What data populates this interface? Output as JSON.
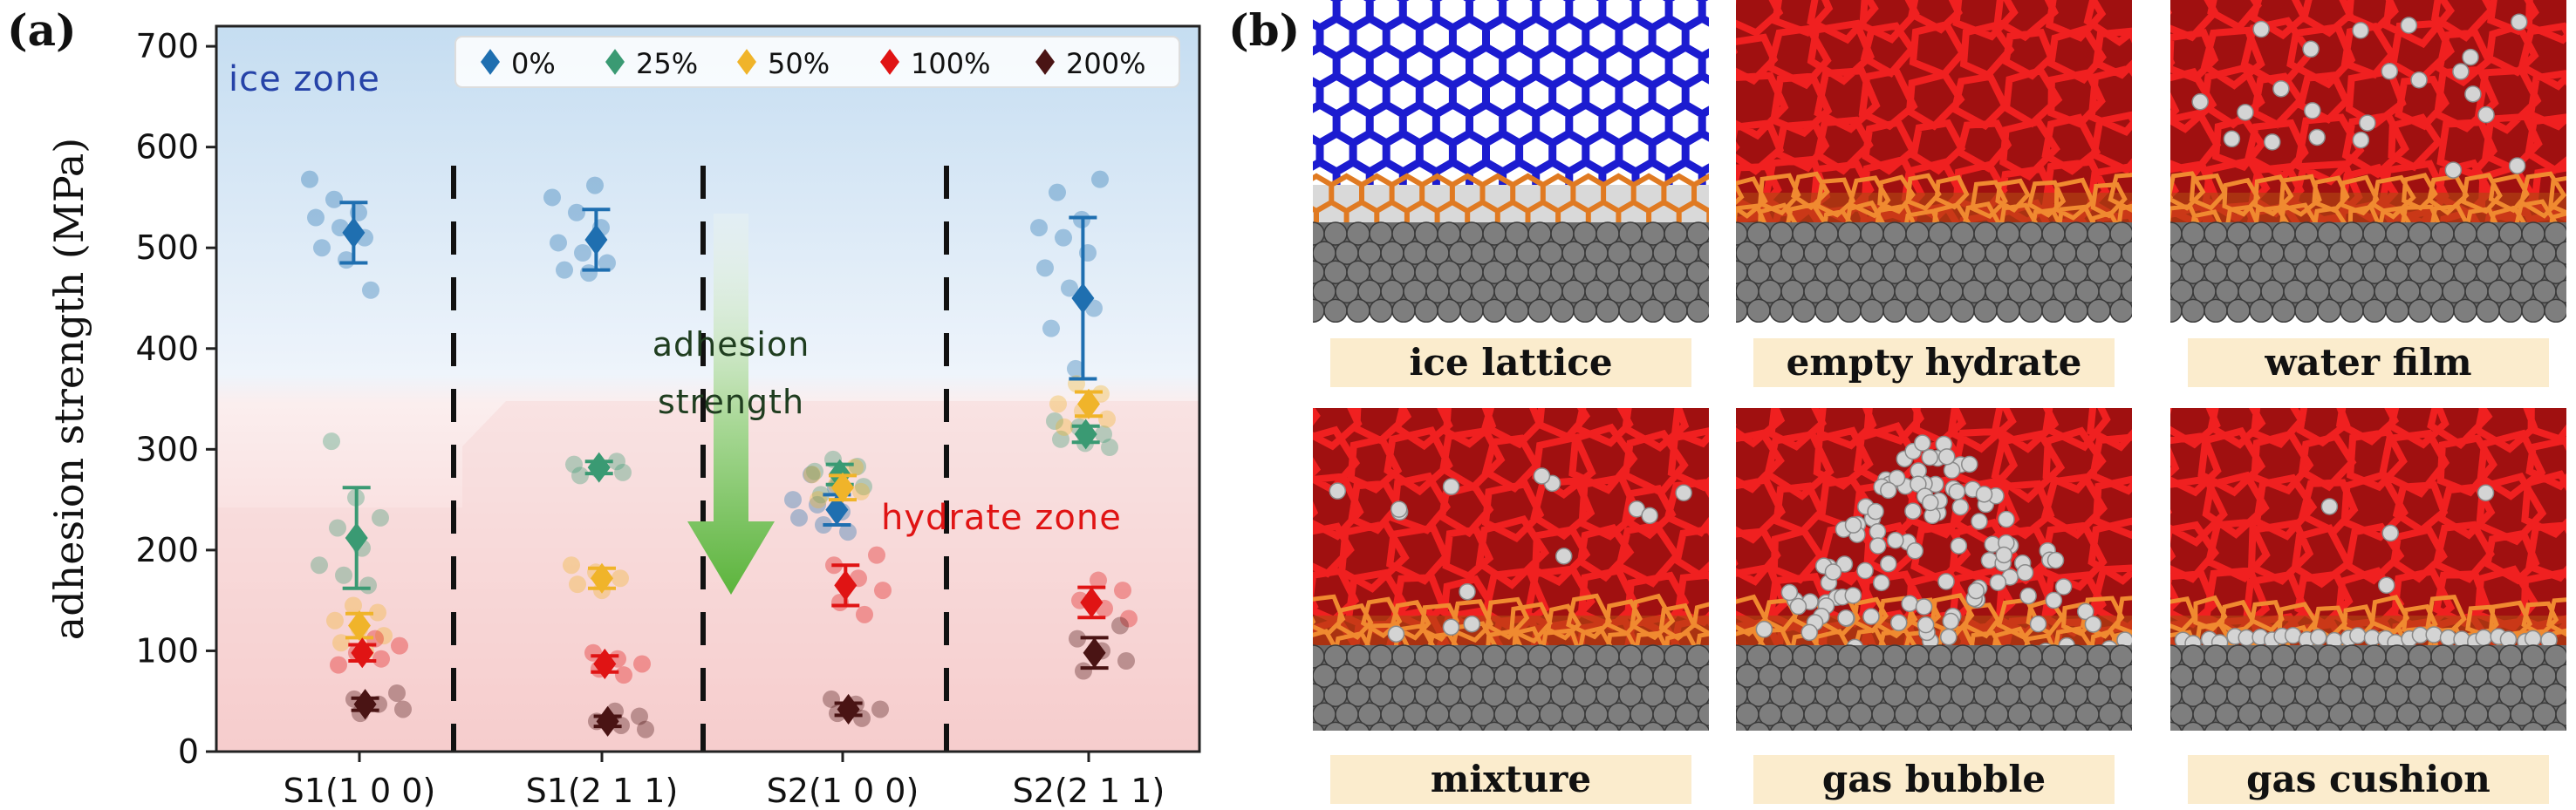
{
  "panel_a": {
    "letter": "(a)",
    "zone_labels": {
      "ice": "ice zone",
      "hydrate": "hydrate zone"
    },
    "arrow_label": [
      "adhesion",
      "strength"
    ]
  },
  "panel_b": {
    "letter": "(b)",
    "tiles": [
      {
        "label": "ice lattice",
        "kind": "ice"
      },
      {
        "label": "empty hydrate",
        "kind": "empty"
      },
      {
        "label": "water film",
        "kind": "film"
      },
      {
        "label": "mixture",
        "kind": "mixture"
      },
      {
        "label": "gas bubble",
        "kind": "bubble"
      },
      {
        "label": "gas cushion",
        "kind": "cushion"
      }
    ]
  },
  "chart_data": {
    "type": "scatter",
    "title": "",
    "xlabel": "",
    "ylabel": "adhesion strength (MPa)",
    "ylim": [
      0,
      720
    ],
    "yticks": [
      0,
      100,
      200,
      300,
      400,
      500,
      600,
      700
    ],
    "categories": [
      "S1(1 0 0)",
      "S1(2 1 1)",
      "S2(1 0 0)",
      "S2(2 1 1)"
    ],
    "legend_position": "top",
    "grid": false,
    "series": [
      {
        "name": "0%",
        "color": "#1f6fb0",
        "mean": [
          515,
          508,
          240,
          450
        ],
        "err": [
          30,
          30,
          15,
          80
        ],
        "points": [
          [
            568,
            548,
            535,
            530,
            520,
            510,
            500,
            488,
            458
          ],
          [
            562,
            550,
            535,
            520,
            505,
            495,
            485,
            478,
            475
          ],
          [
            275,
            262,
            250,
            245,
            238,
            232,
            225,
            218
          ],
          [
            568,
            555,
            528,
            520,
            510,
            495,
            480,
            460,
            440,
            420,
            380
          ]
        ]
      },
      {
        "name": "25%",
        "color": "#3a9a73",
        "mean": [
          212,
          282,
          275,
          315
        ],
        "err": [
          50,
          6,
          10,
          8
        ],
        "points": [
          [
            308,
            252,
            232,
            222,
            202,
            185,
            175,
            165
          ],
          [
            288,
            285,
            280,
            277,
            274
          ],
          [
            290,
            283,
            278,
            270,
            263,
            255
          ],
          [
            328,
            322,
            315,
            310,
            306,
            302
          ]
        ]
      },
      {
        "name": "50%",
        "color": "#f0b42a",
        "mean": [
          125,
          172,
          262,
          345
        ],
        "err": [
          12,
          10,
          12,
          12
        ],
        "points": [
          [
            145,
            138,
            130,
            122,
            115,
            108,
            100
          ],
          [
            185,
            178,
            172,
            166,
            160
          ],
          [
            282,
            275,
            265,
            258,
            250
          ],
          [
            365,
            355,
            345,
            338,
            330,
            322
          ]
        ]
      },
      {
        "name": "100%",
        "color": "#e01414",
        "mean": [
          98,
          87,
          165,
          148
        ],
        "err": [
          8,
          8,
          20,
          15
        ],
        "points": [
          [
            112,
            105,
            98,
            92,
            86
          ],
          [
            98,
            92,
            87,
            82,
            76
          ],
          [
            195,
            185,
            172,
            160,
            148,
            136
          ],
          [
            170,
            160,
            150,
            142,
            132
          ]
        ]
      },
      {
        "name": "200%",
        "color": "#4a1414",
        "mean": [
          47,
          30,
          42,
          98
        ],
        "err": [
          6,
          5,
          6,
          15
        ],
        "points": [
          [
            58,
            52,
            47,
            42,
            38
          ],
          [
            40,
            35,
            30,
            26,
            22
          ],
          [
            52,
            47,
            42,
            38,
            33
          ],
          [
            125,
            112,
            100,
            90,
            80
          ]
        ]
      }
    ]
  }
}
